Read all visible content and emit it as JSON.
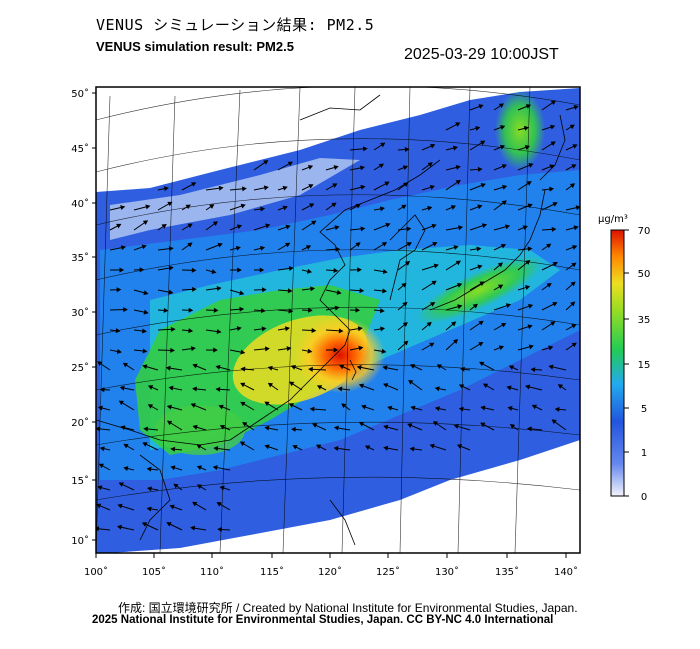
{
  "header": {
    "title_ja": "VENUS シミュレーション結果: PM2.5",
    "title_en": "VENUS simulation result: PM2.5",
    "datetime": "2025-03-29 10:00JST"
  },
  "map": {
    "longitude_labels": [
      "100˚",
      "105˚",
      "110˚",
      "115˚",
      "120˚",
      "125˚",
      "130˚",
      "135˚",
      "140˚"
    ],
    "latitude_labels": [
      "50˚",
      "45˚",
      "40˚",
      "35˚",
      "30˚",
      "25˚",
      "20˚",
      "15˚",
      "10˚"
    ],
    "lon_range": [
      100,
      141
    ],
    "lat_range": [
      9,
      51
    ],
    "hotspot": {
      "lon": 121,
      "lat": 26,
      "value": 70
    }
  },
  "colorbar": {
    "unit": "µg/m³",
    "ticks": [
      "70",
      "50",
      "35",
      "15",
      "5",
      "1",
      "0"
    ],
    "colors": [
      "#e8e8f8",
      "#2244dd",
      "#22aaee",
      "#22cc44",
      "#eedd22",
      "#ff8800",
      "#dd1100"
    ]
  },
  "footer": {
    "credit_ja_en": "作成: 国立環境研究所 / Created by National Institute for Environmental Studies, Japan.",
    "license": "2025 National Institute for Environmental Studies, Japan. CC BY-NC 4.0 International"
  }
}
